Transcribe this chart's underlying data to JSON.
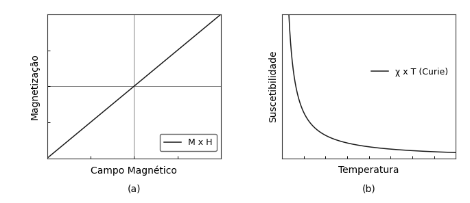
{
  "fig_width": 6.85,
  "fig_height": 2.97,
  "dpi": 100,
  "bg_color": "#ffffff",
  "line_color": "#1a1a1a",
  "line_width": 1.1,
  "ax1_xlabel": "Campo Magnético",
  "ax1_ylabel": "Magnetização",
  "ax1_legend": "M x H",
  "ax1_subtitle": "(a)",
  "ax2_xlabel": "Temperatura",
  "ax2_ylabel": "Suscetibilidade",
  "ax2_legend": "χ x T (Curie)",
  "ax2_subtitle": "(b)",
  "xlabel_fontsize": 10,
  "ylabel_fontsize": 10,
  "legend_fontsize": 9,
  "subtitle_fontsize": 10,
  "crosshair_color": "#808080",
  "crosshair_lw": 0.7,
  "spine_color": "#333333",
  "spine_lw": 0.8
}
